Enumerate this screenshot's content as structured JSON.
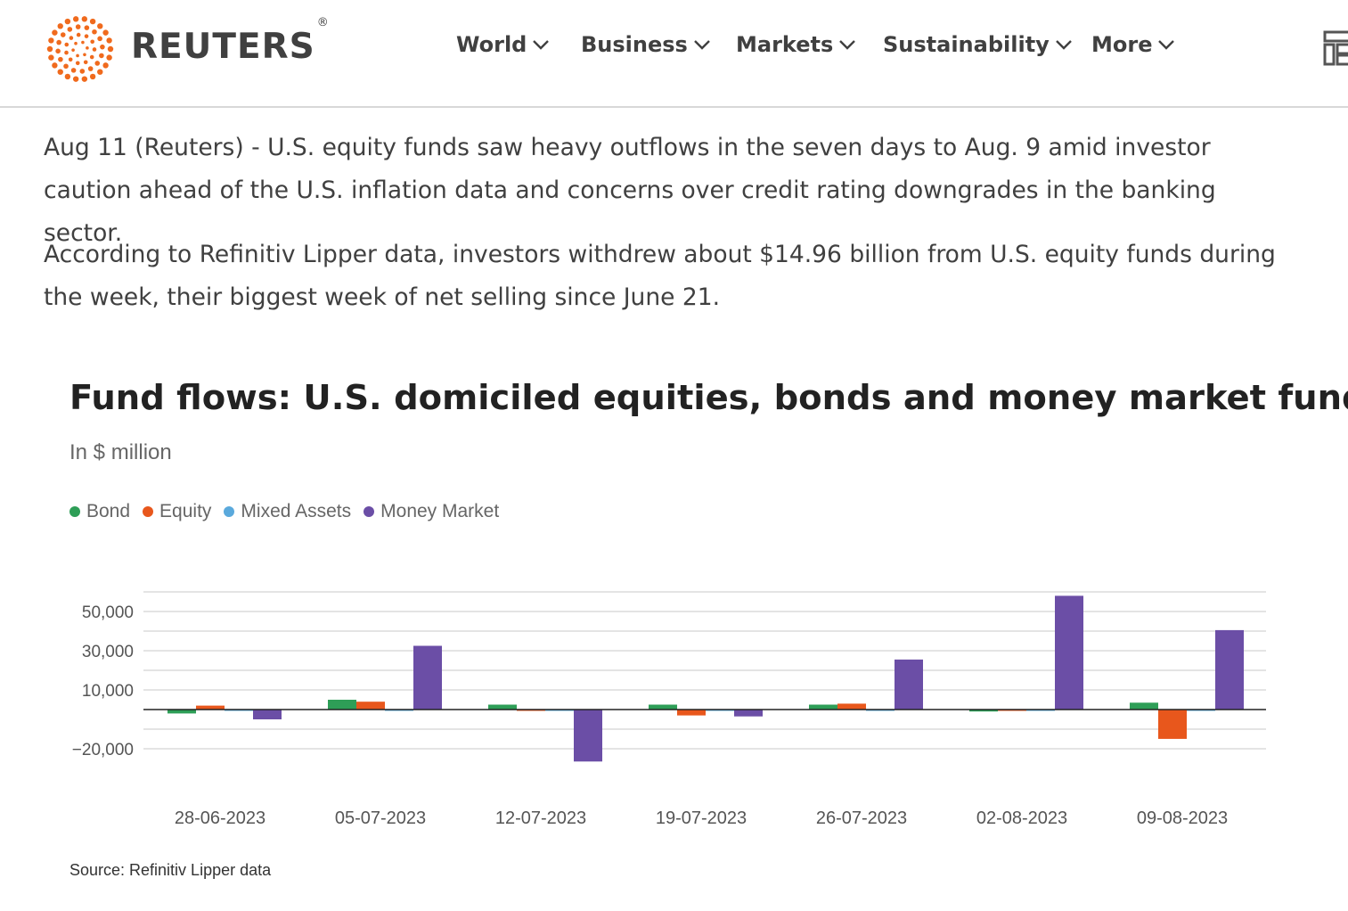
{
  "header": {
    "brand": "REUTERS",
    "registered": "®",
    "nav": [
      {
        "label": "World"
      },
      {
        "label": "Business"
      },
      {
        "label": "Markets"
      },
      {
        "label": "Sustainability"
      },
      {
        "label": "More"
      }
    ],
    "accent_color": "#f06a1d"
  },
  "article": {
    "paragraph1": "Aug 11 (Reuters) - U.S. equity funds saw heavy outflows in the seven days to Aug. 9 amid investor caution ahead of the U.S. inflation data and concerns over credit rating downgrades in the banking sector.",
    "paragraph2": "According to Refinitiv Lipper data, investors withdrew about $14.96 billion from U.S. equity funds during the week, their biggest week of net selling since June 21."
  },
  "chart": {
    "title": "Fund flows: U.S. domiciled equities, bonds and money market funds",
    "subtitle": "In $ million",
    "source": "Source: Refinitiv Lipper data"
  },
  "chart_data": {
    "type": "bar",
    "title": "Fund flows: U.S. domiciled equities, bonds and money market funds",
    "subtitle": "In $ million",
    "xlabel": "",
    "ylabel": "",
    "categories": [
      "28-06-2023",
      "05-07-2023",
      "12-07-2023",
      "19-07-2023",
      "26-07-2023",
      "02-08-2023",
      "09-08-2023"
    ],
    "ylim": [
      -30000,
      60000
    ],
    "yticks": [
      -20000,
      10000,
      30000,
      50000
    ],
    "ytick_labels": [
      "−20,000",
      "10,000",
      "30,000",
      "50,000"
    ],
    "grid": true,
    "legend_position": "top-left",
    "series": [
      {
        "name": "Bond",
        "color": "#2e9e57",
        "values": [
          -2000,
          5000,
          2500,
          2500,
          2500,
          -1000,
          3500
        ]
      },
      {
        "name": "Equity",
        "color": "#e8571c",
        "values": [
          2000,
          4000,
          0,
          -3000,
          3000,
          0,
          -14960
        ]
      },
      {
        "name": "Mixed Assets",
        "color": "#5aa9dc",
        "values": [
          0,
          0,
          -500,
          0,
          -500,
          -500,
          -500
        ]
      },
      {
        "name": "Money Market",
        "color": "#6b4ea6",
        "values": [
          -5000,
          32500,
          -26500,
          -3500,
          25500,
          58000,
          40500
        ]
      }
    ]
  }
}
